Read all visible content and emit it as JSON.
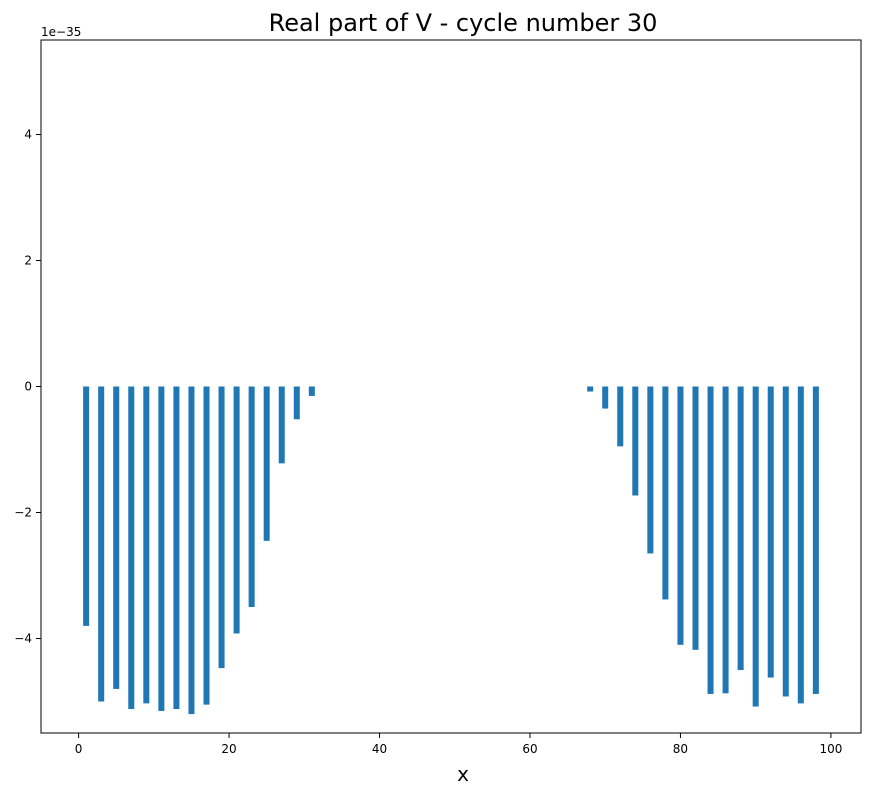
{
  "chart_data": {
    "type": "bar",
    "title": "Real part of V - cycle number 30",
    "xlabel": "x",
    "ylabel": "",
    "y_offset_label": "1e−35",
    "xlim": [
      -5,
      104
    ],
    "ylim": [
      -5.5,
      5.5
    ],
    "xticks": [
      0,
      20,
      40,
      60,
      80,
      100
    ],
    "xtick_labels": [
      "0",
      "20",
      "40",
      "60",
      "80",
      "100"
    ],
    "yticks": [
      -4,
      -2,
      0,
      2,
      4
    ],
    "ytick_labels": [
      "−4",
      "−2",
      "0",
      "2",
      "4"
    ],
    "bar_width": 0.8,
    "color": "#1f77b4",
    "grid": false,
    "x": [
      1,
      3,
      5,
      7,
      9,
      11,
      13,
      15,
      17,
      19,
      21,
      23,
      25,
      27,
      29,
      31,
      68,
      70,
      72,
      74,
      76,
      78,
      80,
      82,
      84,
      86,
      88,
      90,
      92,
      94,
      96,
      98
    ],
    "values": [
      -3.8,
      -5.0,
      -4.8,
      -5.12,
      -5.03,
      -5.15,
      -5.12,
      -5.2,
      -5.05,
      -4.47,
      -3.92,
      -3.5,
      -2.45,
      -1.22,
      -0.52,
      -0.15,
      -0.08,
      -0.35,
      -0.95,
      -1.73,
      -2.65,
      -3.38,
      -4.1,
      -4.18,
      -4.88,
      -4.87,
      -4.5,
      -5.08,
      -4.62,
      -4.92,
      -5.03,
      -4.88
    ]
  }
}
